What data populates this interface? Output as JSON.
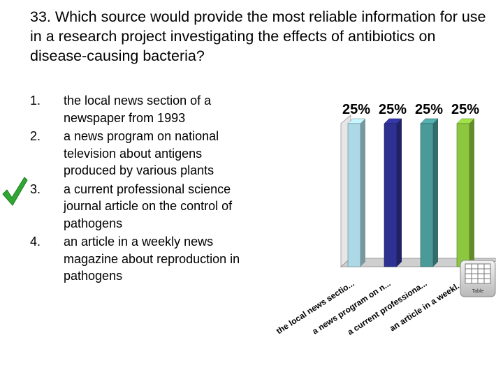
{
  "question": "33. Which source would provide the most reliable information for use in a research project investigating the effects of antibiotics on disease-causing bacteria?",
  "answers": [
    {
      "num": "1.",
      "text": "the local news section of a newspaper from 1993"
    },
    {
      "num": "2.",
      "text": "a news program on national television about antigens produced by various plants"
    },
    {
      "num": "3.",
      "text": "a current professional science journal article on the control of pathogens",
      "correct": true
    },
    {
      "num": "4.",
      "text": "an article in a weekly news magazine about reproduction in pathogens"
    }
  ],
  "correct_icon": "check-mark-icon",
  "table_button": {
    "icon": "table-grid-icon",
    "label": "Table"
  },
  "chart_data": {
    "type": "bar",
    "categories": [
      "the local news sectio...",
      "a news program on n...",
      "a current professiona...",
      "an article in a weekl..."
    ],
    "values": [
      25,
      25,
      25,
      25
    ],
    "value_labels": [
      "25%",
      "25%",
      "25%",
      "25%"
    ],
    "colors": [
      "#add8e6",
      "#2e3192",
      "#4a9a9a",
      "#8dc63f"
    ],
    "ylim": [
      0,
      25
    ],
    "style": "3d",
    "grid": false
  }
}
